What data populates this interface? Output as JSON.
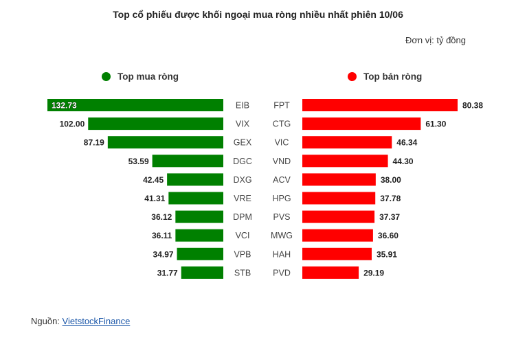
{
  "title": "Top cổ phiếu được khối ngoại mua ròng nhiều nhất phiên 10/06",
  "unit": "Đơn vị: tỷ đồng",
  "legend": {
    "buy": "Top mua ròng",
    "sell": "Top bán ròng"
  },
  "colors": {
    "buy": "#008000",
    "sell": "#ff0000"
  },
  "source": {
    "label": "Nguồn: ",
    "link": "VietstockFinance"
  },
  "chart_data": [
    {
      "type": "bar",
      "orientation": "horizontal",
      "direction": "right-to-left",
      "series": [
        {
          "name": "Top mua ròng",
          "values": [
            132.73,
            102.0,
            87.19,
            53.59,
            42.45,
            41.31,
            36.12,
            36.11,
            34.97,
            31.77
          ]
        }
      ],
      "categories": [
        "EIB",
        "VIX",
        "GEX",
        "DGC",
        "DXG",
        "VRE",
        "DPM",
        "VCI",
        "VPB",
        "STB"
      ],
      "value_labels": [
        "132.73",
        "102.00",
        "87.19",
        "53.59",
        "42.45",
        "41.31",
        "36.12",
        "36.11",
        "34.97",
        "31.77"
      ],
      "color": "#008000"
    },
    {
      "type": "bar",
      "orientation": "horizontal",
      "direction": "left-to-right",
      "series": [
        {
          "name": "Top bán ròng",
          "values": [
            80.38,
            61.3,
            46.34,
            44.3,
            38.0,
            37.78,
            37.37,
            36.6,
            35.91,
            29.19
          ]
        }
      ],
      "categories": [
        "FPT",
        "CTG",
        "VIC",
        "VND",
        "ACV",
        "HPG",
        "PVS",
        "MWG",
        "HAH",
        "PVD"
      ],
      "value_labels": [
        "80.38",
        "61.30",
        "46.34",
        "44.30",
        "38.00",
        "37.78",
        "37.37",
        "36.60",
        "35.91",
        "29.19"
      ],
      "color": "#ff0000"
    }
  ]
}
